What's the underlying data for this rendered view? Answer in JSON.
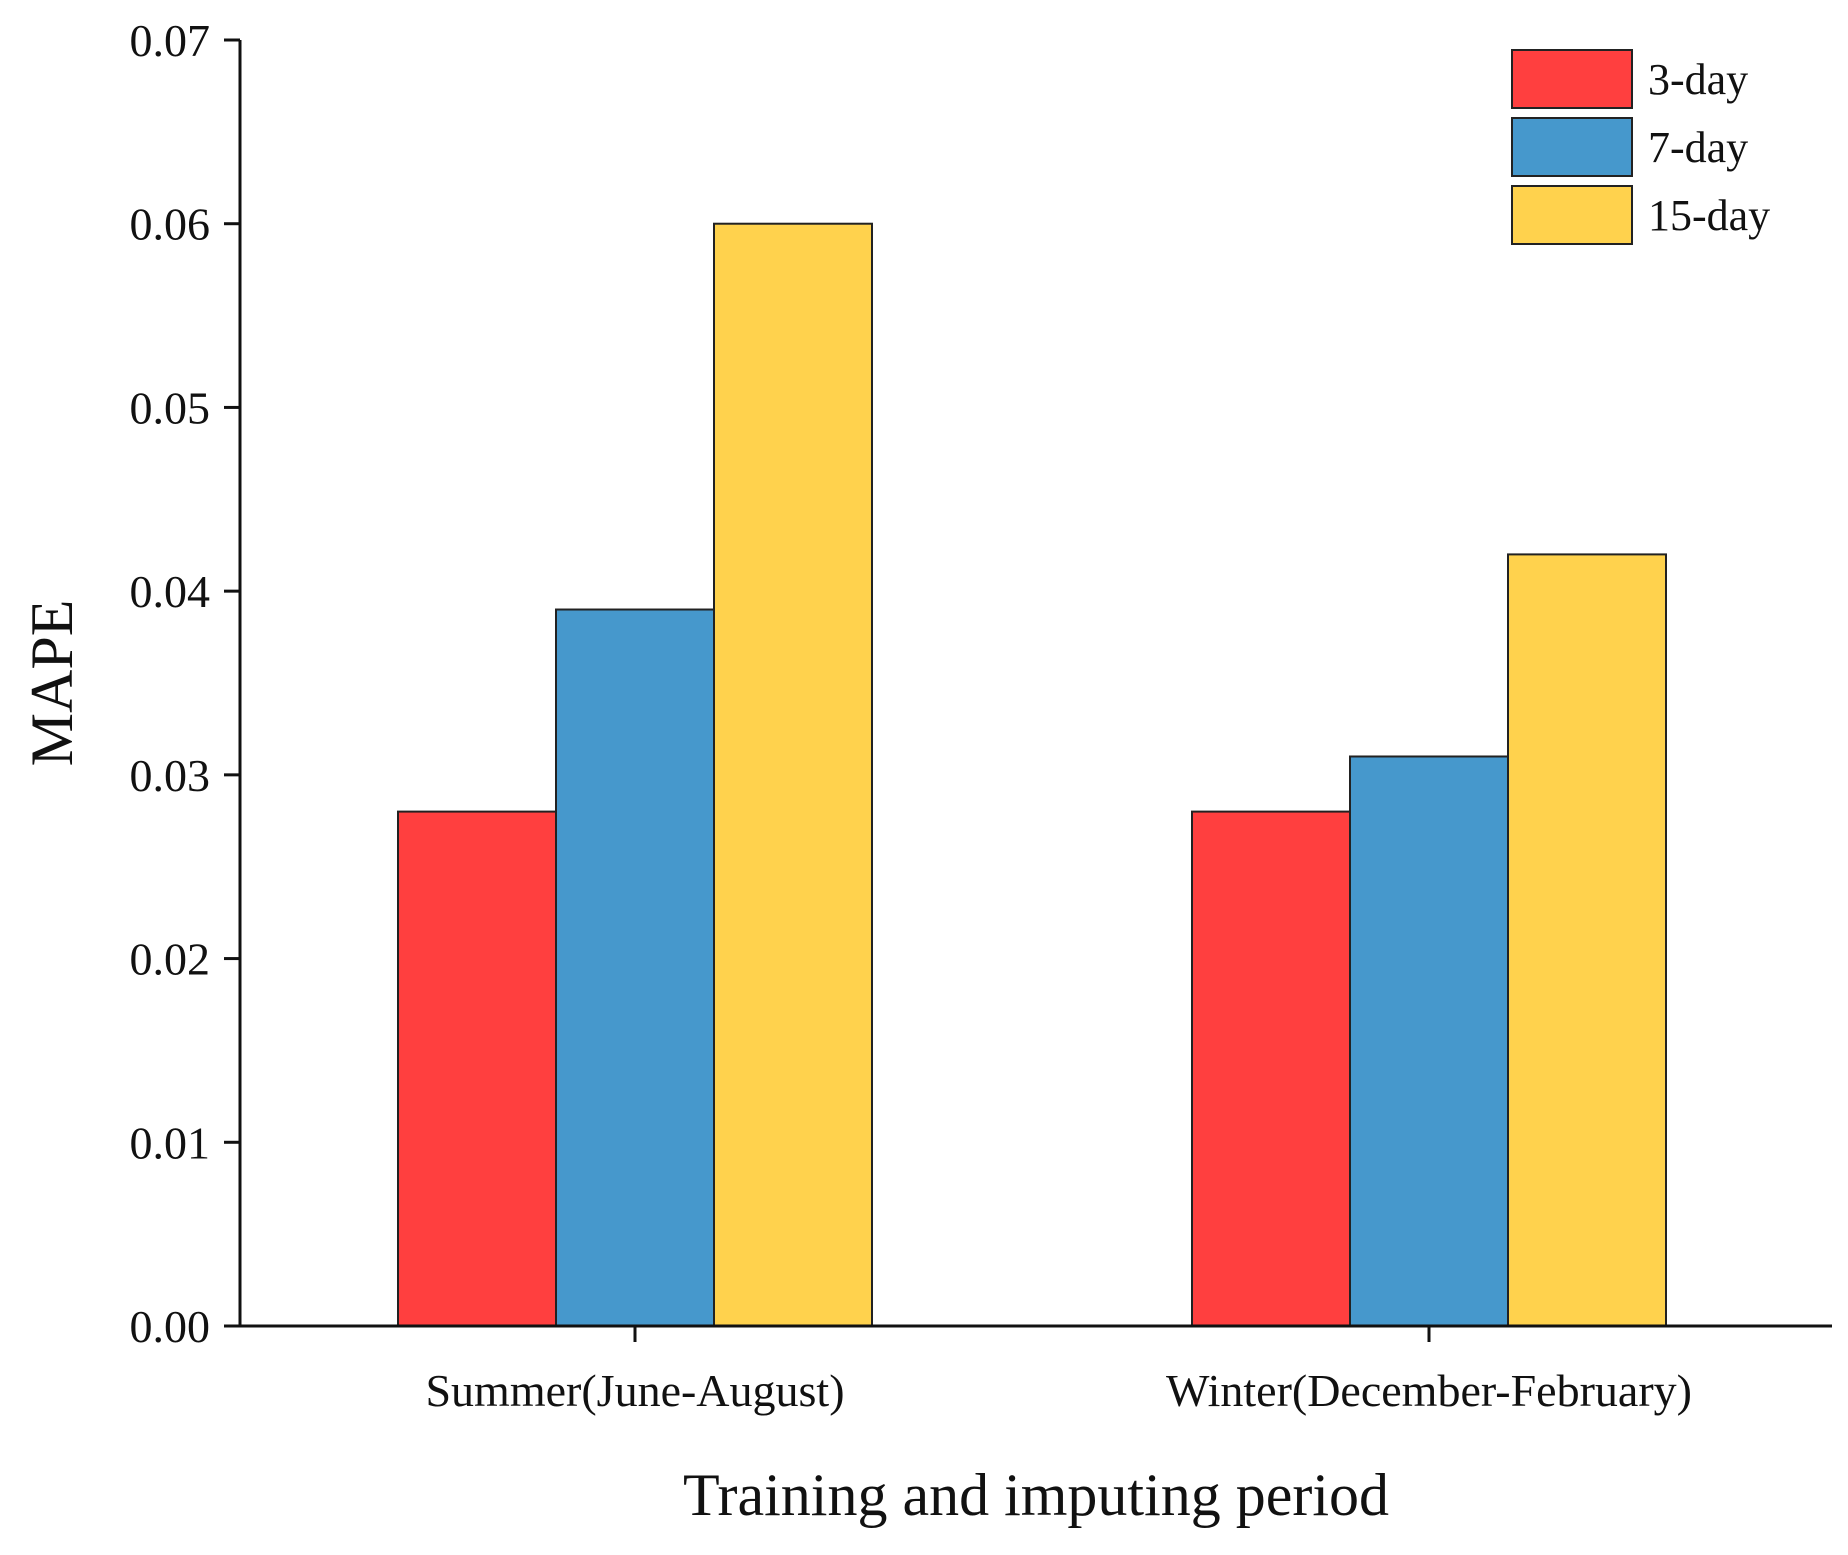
{
  "chart_data": {
    "type": "bar",
    "title": "",
    "xlabel": "Training and imputing period",
    "ylabel": "MAPE",
    "categories": [
      "Summer(June-August)",
      "Winter(December-February)"
    ],
    "series": [
      {
        "name": "3-day",
        "color": "#ff3f3f",
        "values": [
          0.028,
          0.028
        ]
      },
      {
        "name": "7-day",
        "color": "#4698cc",
        "values": [
          0.039,
          0.031
        ]
      },
      {
        "name": "15-day",
        "color": "#ffd24d",
        "values": [
          0.06,
          0.042
        ]
      }
    ],
    "ylim": [
      0,
      0.07
    ],
    "yticks": [
      "0.00",
      "0.01",
      "0.02",
      "0.03",
      "0.04",
      "0.05",
      "0.06",
      "0.07"
    ],
    "legend": "top-right",
    "grid": false
  }
}
